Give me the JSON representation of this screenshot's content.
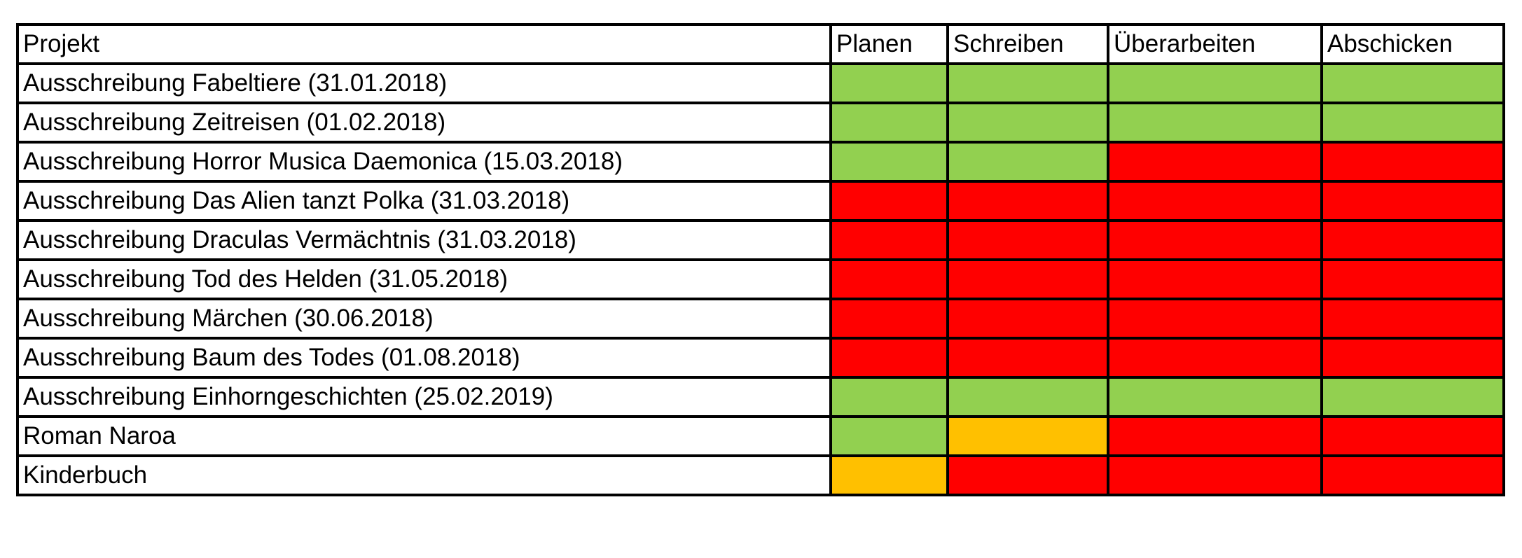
{
  "colors": {
    "green": "#92d050",
    "red": "#ff0000",
    "orange": "#ffc000"
  },
  "headers": [
    "Projekt",
    "Planen",
    "Schreiben",
    "Überarbeiten",
    "Abschicken"
  ],
  "rows": [
    {
      "name": "Ausschreibung Fabeltiere (31.01.2018)",
      "status": [
        "green",
        "green",
        "green",
        "green"
      ]
    },
    {
      "name": "Ausschreibung Zeitreisen (01.02.2018)",
      "status": [
        "green",
        "green",
        "green",
        "green"
      ]
    },
    {
      "name": "Ausschreibung Horror Musica Daemonica (15.03.2018)",
      "status": [
        "green",
        "green",
        "red",
        "red"
      ]
    },
    {
      "name": "Ausschreibung Das Alien tanzt Polka (31.03.2018)",
      "status": [
        "red",
        "red",
        "red",
        "red"
      ]
    },
    {
      "name": "Ausschreibung Draculas Vermächtnis (31.03.2018)",
      "status": [
        "red",
        "red",
        "red",
        "red"
      ]
    },
    {
      "name": "Ausschreibung Tod des Helden (31.05.2018)",
      "status": [
        "red",
        "red",
        "red",
        "red"
      ]
    },
    {
      "name": "Ausschreibung Märchen (30.06.2018)",
      "status": [
        "red",
        "red",
        "red",
        "red"
      ]
    },
    {
      "name": "Ausschreibung Baum des Todes (01.08.2018)",
      "status": [
        "red",
        "red",
        "red",
        "red"
      ]
    },
    {
      "name": "Ausschreibung Einhorngeschichten (25.02.2019)",
      "status": [
        "green",
        "green",
        "green",
        "green"
      ]
    },
    {
      "name": "Roman Naroa",
      "status": [
        "green",
        "orange",
        "red",
        "red"
      ]
    },
    {
      "name": "Kinderbuch",
      "status": [
        "orange",
        "red",
        "red",
        "red"
      ]
    }
  ]
}
